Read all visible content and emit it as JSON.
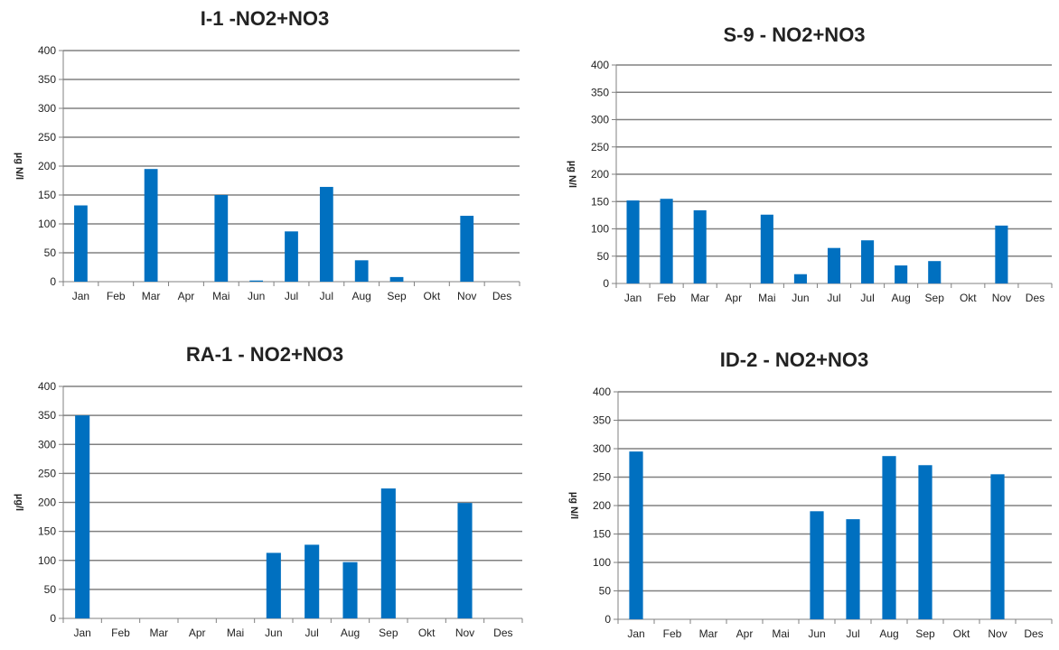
{
  "accent_color": "#0070c0",
  "chart_data": [
    {
      "type": "bar",
      "title": "I-1 -NO2+NO3",
      "ylabel": "µg N/l",
      "categories": [
        "Jan",
        "Feb",
        "Mar",
        "Apr",
        "Mai",
        "Jun",
        "Jul",
        "Jul",
        "Aug",
        "Sep",
        "Okt",
        "Nov",
        "Des"
      ],
      "values": [
        132,
        null,
        195,
        null,
        150,
        2,
        87,
        164,
        37,
        8,
        null,
        114,
        null
      ],
      "ylim": [
        0,
        400
      ],
      "yticks": [
        0,
        50,
        100,
        150,
        200,
        250,
        300,
        350,
        400
      ],
      "grid": true
    },
    {
      "type": "bar",
      "title": "S-9 - NO2+NO3",
      "ylabel": "µg N/l",
      "categories": [
        "Jan",
        "Feb",
        "Mar",
        "Apr",
        "Mai",
        "Jun",
        "Jul",
        "Jul",
        "Aug",
        "Sep",
        "Okt",
        "Nov",
        "Des"
      ],
      "values": [
        152,
        155,
        134,
        null,
        126,
        17,
        65,
        79,
        33,
        41,
        null,
        106,
        null
      ],
      "ylim": [
        0,
        400
      ],
      "yticks": [
        0,
        50,
        100,
        150,
        200,
        250,
        300,
        350,
        400
      ],
      "grid": true
    },
    {
      "type": "bar",
      "title": "RA-1 - NO2+NO3",
      "ylabel": "µg/l",
      "categories": [
        "Jan",
        "Feb",
        "Mar",
        "Apr",
        "Mai",
        "Jun",
        "Jul",
        "Aug",
        "Sep",
        "Okt",
        "Nov",
        "Des"
      ],
      "values": [
        350,
        null,
        null,
        null,
        null,
        113,
        127,
        97,
        224,
        null,
        199,
        null
      ],
      "ylim": [
        0,
        400
      ],
      "yticks": [
        0,
        50,
        100,
        150,
        200,
        250,
        300,
        350,
        400
      ],
      "grid": true
    },
    {
      "type": "bar",
      "title": "ID-2 - NO2+NO3",
      "ylabel": "µg N/l",
      "categories": [
        "Jan",
        "Feb",
        "Mar",
        "Apr",
        "Mai",
        "Jun",
        "Jul",
        "Aug",
        "Sep",
        "Okt",
        "Nov",
        "Des"
      ],
      "values": [
        295,
        null,
        null,
        null,
        null,
        190,
        176,
        287,
        271,
        null,
        255,
        null
      ],
      "ylim": [
        0,
        400
      ],
      "yticks": [
        0,
        50,
        100,
        150,
        200,
        250,
        300,
        350,
        400
      ],
      "grid": true
    }
  ]
}
